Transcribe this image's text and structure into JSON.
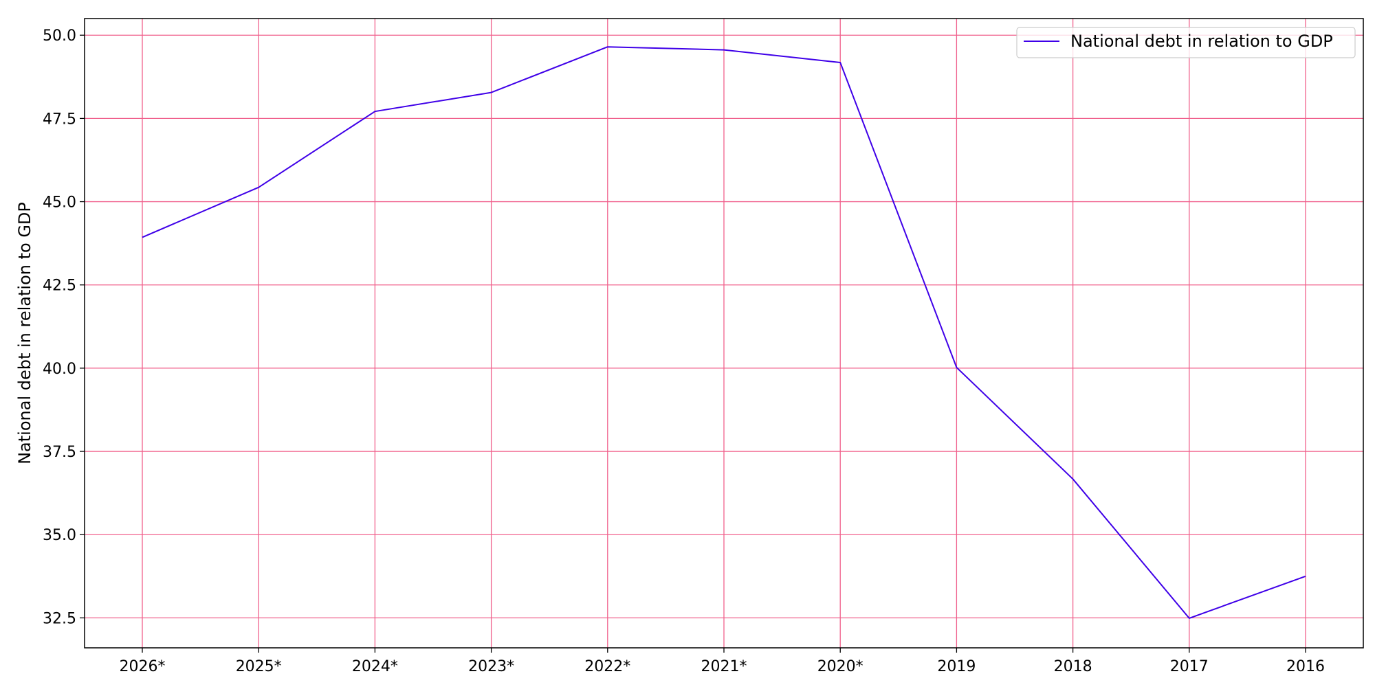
{
  "chart_data": {
    "type": "line",
    "title": "",
    "xlabel": "",
    "ylabel": "National debt in relation to GDP",
    "categories": [
      "2026*",
      "2025*",
      "2024*",
      "2023*",
      "2022*",
      "2021*",
      "2020*",
      "2019",
      "2018",
      "2017",
      "2016"
    ],
    "series": [
      {
        "name": "National debt in relation to GDP",
        "values": [
          43.93,
          45.43,
          47.71,
          48.28,
          49.65,
          49.56,
          49.18,
          40.02,
          36.67,
          32.49,
          33.75
        ],
        "color": "#3f00e8"
      }
    ],
    "ylim": [
      31.6,
      50.5
    ],
    "yticks": [
      32.5,
      35.0,
      37.5,
      40.0,
      42.5,
      45.0,
      47.5,
      50.0
    ],
    "ytick_labels": [
      "32.5",
      "35.0",
      "37.5",
      "40.0",
      "42.5",
      "45.0",
      "47.5",
      "50.0"
    ],
    "grid": true,
    "grid_color": "#f0608c",
    "legend_position": "top-right"
  }
}
